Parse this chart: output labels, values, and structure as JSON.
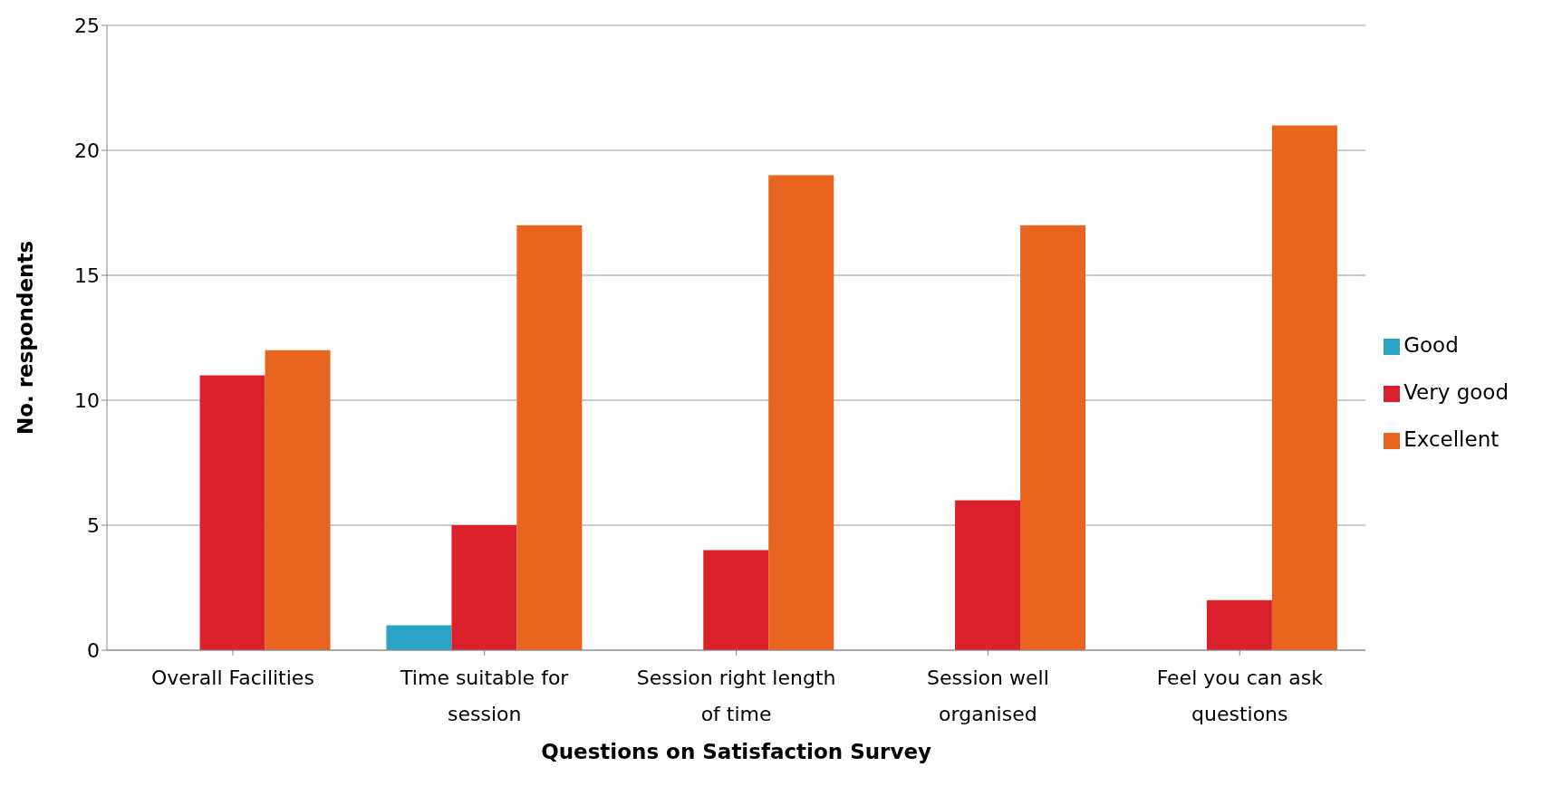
{
  "chart_data": {
    "type": "bar",
    "xlabel": "Questions on Satisfaction Survey",
    "ylabel": "No. respondents",
    "categories": [
      "Overall Facilities",
      "Time suitable for session",
      "Session right length of time",
      "Session well organised",
      "Feel you can ask questions"
    ],
    "series": [
      {
        "name": "Good",
        "color": "#2aa3c4",
        "values": [
          0,
          1,
          0,
          0,
          0
        ]
      },
      {
        "name": "Very good",
        "color": "#da202b",
        "values": [
          11,
          5,
          4,
          6,
          2
        ]
      },
      {
        "name": "Excellent",
        "color": "#e8641f",
        "values": [
          12,
          17,
          19,
          17,
          21
        ]
      }
    ],
    "ylim": [
      0,
      25
    ],
    "yticks": [
      0,
      5,
      10,
      15,
      20,
      25
    ],
    "grid": "y",
    "legend": "right"
  }
}
